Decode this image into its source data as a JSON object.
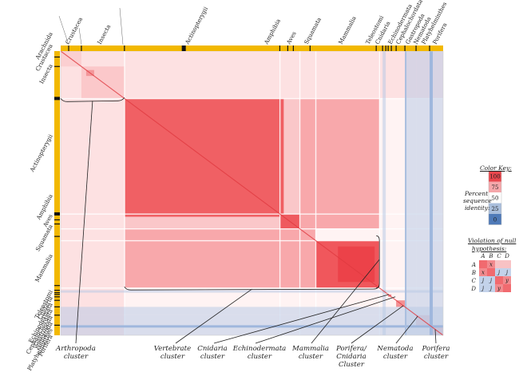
{
  "top_labels": [
    "Crustacea",
    "Insecta",
    "Actinopterygii",
    "Amphibia",
    "Aves",
    "Squamata",
    "Mammalia",
    "Teleostomi",
    "Cnidaria",
    "Echinodermata",
    "Cephalochordata",
    "Gastropoda",
    "Nematoda",
    "Platyhelminthes",
    "Porifera"
  ],
  "left_labels": [
    "Arachnida",
    "Crustacea",
    "Insecta",
    "Actinopterygii",
    "Amphibia",
    "Aves",
    "Squamata",
    "Mammalia",
    "Teleostomi",
    "Cnidaria",
    "Echinodermata",
    "Cephalochordata",
    "Gastropoda",
    "Nematoda",
    "Platyhelminthes",
    "Porifera"
  ],
  "clusters": [
    {
      "line1": "Arthropoda",
      "line2": "cluster",
      "line3": ""
    },
    {
      "line1": "Vertebrate",
      "line2": "cluster",
      "line3": ""
    },
    {
      "line1": "Cnidaria",
      "line2": "cluster",
      "line3": ""
    },
    {
      "line1": "Echinodermata",
      "line2": "cluster",
      "line3": ""
    },
    {
      "line1": "Mammalia",
      "line2": "cluster",
      "line3": ""
    },
    {
      "line1": "Porifera/",
      "line2": "Cnidaria",
      "line3": "Cluster"
    },
    {
      "line1": "Nematoda",
      "line2": "cluster",
      "line3": ""
    },
    {
      "line1": "Porifera",
      "line2": "cluster",
      "line3": ""
    }
  ],
  "color_key": {
    "title": "Color Key:",
    "ticks": [
      "100",
      "75",
      "50",
      "25",
      "0"
    ],
    "label_lines": [
      "Percent",
      "sequence",
      "identity:"
    ],
    "colors": [
      "#e8474d",
      "#f5a7aa",
      "#ffffff",
      "#a9bedc",
      "#4f7ab8"
    ]
  },
  "violation": {
    "title_line1": "Violation of null",
    "title_line2": "hypothesis:",
    "cols": [
      "A",
      "B",
      "C",
      "D"
    ],
    "rows": [
      "A",
      "B",
      "C",
      "D"
    ],
    "cells": [
      [
        "",
        "x",
        "",
        ""
      ],
      [
        "x",
        "",
        "j",
        "j"
      ],
      [
        "j",
        "j",
        "",
        "y"
      ],
      [
        "j",
        "j",
        "y",
        ""
      ]
    ]
  },
  "palette": {
    "red": "#ee5055",
    "pink": "#fbd3d5",
    "blue": "#b9cbe6",
    "yellow": "#f2b800",
    "black": "#111111"
  }
}
